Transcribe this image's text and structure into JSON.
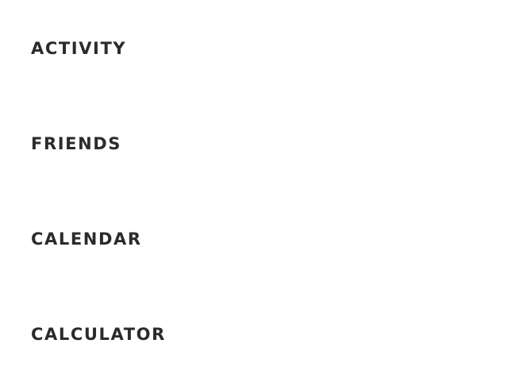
{
  "menu": {
    "items": [
      {
        "label": "ACTIVITY"
      },
      {
        "label": "FRIENDS"
      },
      {
        "label": "CALENDAR"
      },
      {
        "label": "CALCULATOR"
      }
    ]
  },
  "colors": {
    "text": "#2b2b2b",
    "background": "#ffffff"
  }
}
